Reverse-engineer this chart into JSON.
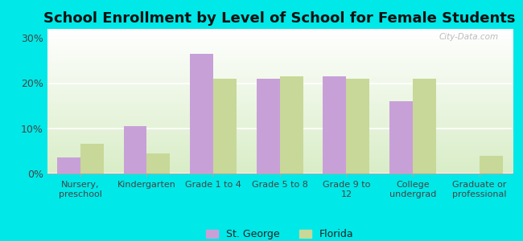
{
  "title": "School Enrollment by Level of School for Female Students",
  "categories": [
    "Nursery,\npreschool",
    "Kindergarten",
    "Grade 1 to 4",
    "Grade 5 to 8",
    "Grade 9 to\n12",
    "College\nundergrad",
    "Graduate or\nprofessional"
  ],
  "st_george": [
    3.5,
    10.5,
    26.5,
    21.0,
    21.5,
    16.0,
    0.0
  ],
  "florida": [
    6.5,
    4.5,
    21.0,
    21.5,
    21.0,
    21.0,
    4.0
  ],
  "st_george_color": "#c8a0d8",
  "florida_color": "#c8d898",
  "ylim": [
    0,
    32
  ],
  "yticks": [
    0,
    10,
    20,
    30
  ],
  "ytick_labels": [
    "0%",
    "10%",
    "20%",
    "30%"
  ],
  "background_color": "#00e8e8",
  "title_fontsize": 13,
  "legend_labels": [
    "St. George",
    "Florida"
  ],
  "bar_width": 0.35,
  "watermark": "City-Data.com"
}
